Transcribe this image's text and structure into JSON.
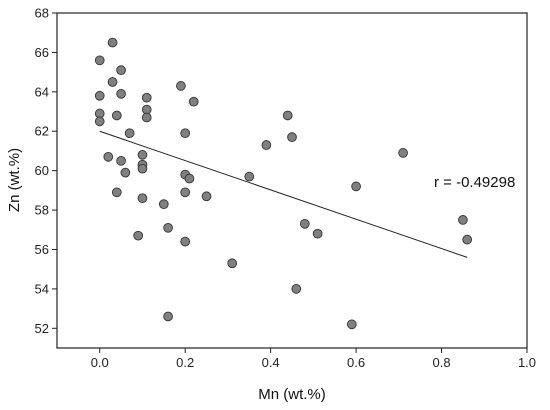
{
  "chart_data": {
    "type": "scatter",
    "xlabel": "Mn (wt.%)",
    "ylabel": "Zn (wt.%)",
    "xlim": [
      -0.1,
      1.0
    ],
    "ylim": [
      51,
      68
    ],
    "xticks": [
      "0.0",
      "0.2",
      "0.4",
      "0.6",
      "0.8",
      "1.0"
    ],
    "yticks": [
      "52",
      "54",
      "56",
      "58",
      "60",
      "62",
      "64",
      "66",
      "68"
    ],
    "annotation": "r = -0.49298",
    "grid": false,
    "marker_color": "#808080",
    "marker_edge_color": "#333333",
    "line_color": "#222222",
    "fit_line": {
      "x": [
        0.0,
        0.86
      ],
      "y": [
        62.0,
        55.6
      ]
    },
    "points": [
      {
        "x": 0.0,
        "y": 65.6
      },
      {
        "x": 0.0,
        "y": 63.8
      },
      {
        "x": 0.0,
        "y": 62.9
      },
      {
        "x": 0.0,
        "y": 62.5
      },
      {
        "x": 0.02,
        "y": 60.7
      },
      {
        "x": 0.03,
        "y": 66.5
      },
      {
        "x": 0.03,
        "y": 64.5
      },
      {
        "x": 0.04,
        "y": 62.8
      },
      {
        "x": 0.04,
        "y": 58.9
      },
      {
        "x": 0.05,
        "y": 65.1
      },
      {
        "x": 0.05,
        "y": 63.9
      },
      {
        "x": 0.05,
        "y": 60.5
      },
      {
        "x": 0.06,
        "y": 59.9
      },
      {
        "x": 0.07,
        "y": 61.9
      },
      {
        "x": 0.09,
        "y": 56.7
      },
      {
        "x": 0.1,
        "y": 60.8
      },
      {
        "x": 0.1,
        "y": 60.3
      },
      {
        "x": 0.1,
        "y": 60.1
      },
      {
        "x": 0.1,
        "y": 58.6
      },
      {
        "x": 0.11,
        "y": 63.7
      },
      {
        "x": 0.11,
        "y": 63.1
      },
      {
        "x": 0.11,
        "y": 62.7
      },
      {
        "x": 0.15,
        "y": 58.3
      },
      {
        "x": 0.16,
        "y": 57.1
      },
      {
        "x": 0.16,
        "y": 52.6
      },
      {
        "x": 0.19,
        "y": 64.3
      },
      {
        "x": 0.2,
        "y": 61.9
      },
      {
        "x": 0.2,
        "y": 59.8
      },
      {
        "x": 0.2,
        "y": 58.9
      },
      {
        "x": 0.2,
        "y": 56.4
      },
      {
        "x": 0.21,
        "y": 59.6
      },
      {
        "x": 0.22,
        "y": 63.5
      },
      {
        "x": 0.25,
        "y": 58.7
      },
      {
        "x": 0.31,
        "y": 55.3
      },
      {
        "x": 0.35,
        "y": 59.7
      },
      {
        "x": 0.39,
        "y": 61.3
      },
      {
        "x": 0.44,
        "y": 62.8
      },
      {
        "x": 0.45,
        "y": 61.7
      },
      {
        "x": 0.46,
        "y": 54.0
      },
      {
        "x": 0.48,
        "y": 57.3
      },
      {
        "x": 0.51,
        "y": 56.8
      },
      {
        "x": 0.59,
        "y": 52.2
      },
      {
        "x": 0.6,
        "y": 59.2
      },
      {
        "x": 0.71,
        "y": 60.9
      },
      {
        "x": 0.85,
        "y": 57.5
      },
      {
        "x": 0.86,
        "y": 56.5
      }
    ]
  }
}
